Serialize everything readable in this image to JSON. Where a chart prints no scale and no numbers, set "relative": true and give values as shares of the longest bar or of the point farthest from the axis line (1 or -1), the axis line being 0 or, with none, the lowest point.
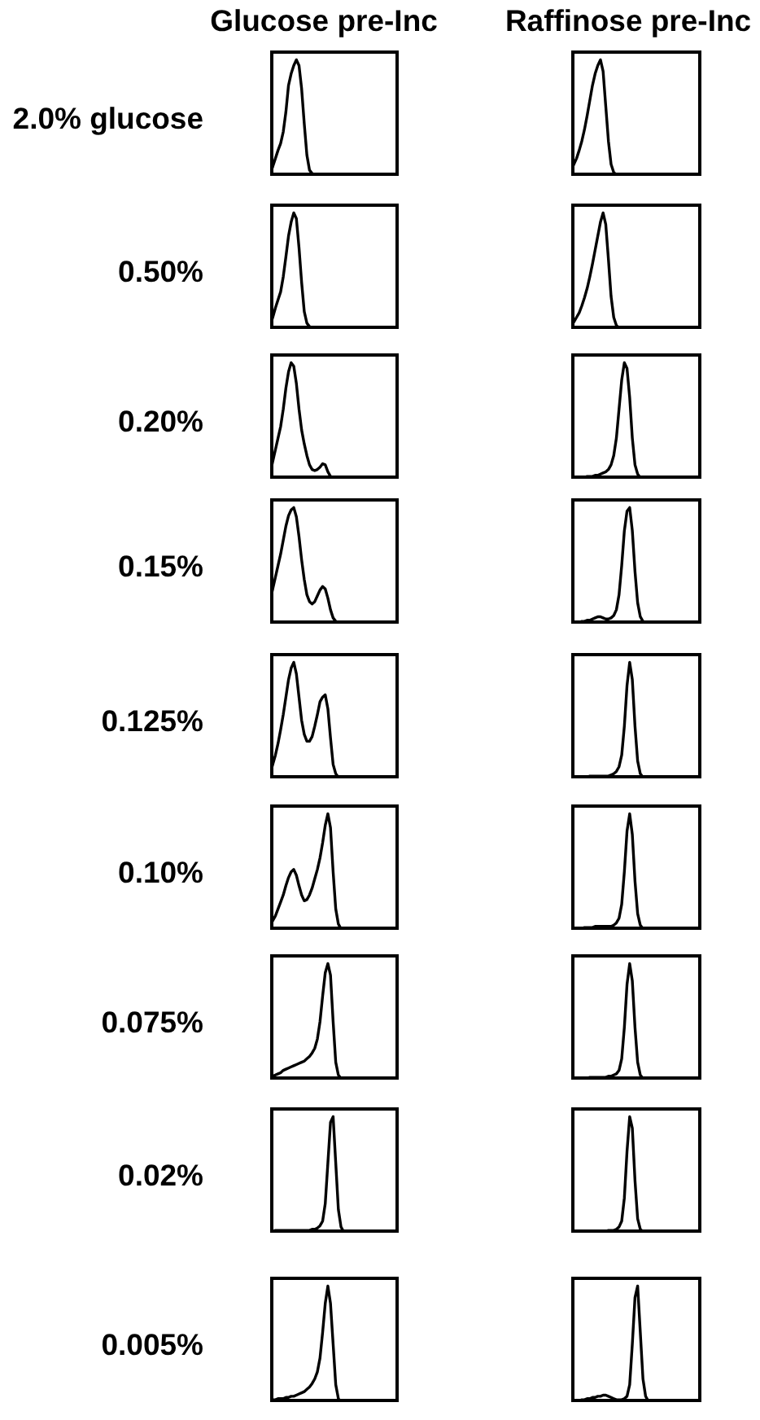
{
  "chart_data": [
    {
      "type": "line",
      "title": "Glucose pre-Inc",
      "ylabel": "2.0% glucose",
      "relative": true,
      "color": "#000000",
      "categories": [
        null,
        null,
        null,
        null,
        null,
        null,
        null,
        null,
        null,
        null,
        null,
        null,
        null,
        null,
        null,
        null,
        null,
        null,
        null,
        null,
        null,
        null,
        null,
        null,
        null,
        null,
        null,
        null,
        null,
        null,
        null,
        null,
        null,
        null,
        null,
        null,
        null,
        null,
        null,
        null,
        null,
        null,
        null,
        null,
        null,
        null,
        null,
        null,
        null,
        null
      ],
      "values": [
        0.02,
        0.08,
        0.15,
        0.22,
        0.28,
        0.38,
        0.55,
        0.78,
        0.88,
        0.95,
        1,
        0.95,
        0.75,
        0.45,
        0.18,
        0.05,
        0.02,
        0.01,
        0.01,
        0.01,
        0,
        0,
        0,
        0,
        0,
        0,
        0,
        0,
        0,
        0,
        0,
        0,
        0,
        0,
        0,
        0,
        0,
        0,
        0,
        0,
        0,
        0,
        0,
        0,
        0,
        0,
        0,
        0,
        0,
        0
      ]
    },
    {
      "type": "line",
      "title": "Raffinose pre-Inc",
      "relative": true,
      "color": "#000000",
      "categories": [
        null,
        null,
        null,
        null,
        null,
        null,
        null,
        null,
        null,
        null,
        null,
        null,
        null,
        null,
        null,
        null,
        null,
        null,
        null,
        null,
        null,
        null,
        null,
        null,
        null,
        null,
        null,
        null,
        null,
        null,
        null,
        null,
        null,
        null,
        null,
        null,
        null,
        null,
        null,
        null,
        null,
        null,
        null,
        null,
        null,
        null,
        null,
        null,
        null,
        null
      ],
      "values": [
        0.05,
        0.1,
        0.15,
        0.22,
        0.3,
        0.4,
        0.52,
        0.65,
        0.78,
        0.88,
        0.95,
        1,
        0.9,
        0.6,
        0.3,
        0.1,
        0.03,
        0.01,
        0.01,
        0,
        0,
        0,
        0,
        0,
        0,
        0,
        0,
        0,
        0,
        0,
        0,
        0,
        0,
        0,
        0,
        0,
        0,
        0,
        0,
        0,
        0,
        0,
        0,
        0,
        0,
        0,
        0,
        0,
        0,
        0
      ]
    },
    {
      "type": "line",
      "ylabel": "0.50%",
      "relative": true,
      "color": "#000000",
      "categories": [
        null,
        null,
        null,
        null,
        null,
        null,
        null,
        null,
        null,
        null,
        null,
        null,
        null,
        null,
        null,
        null,
        null,
        null,
        null,
        null,
        null,
        null,
        null,
        null,
        null,
        null,
        null,
        null,
        null,
        null,
        null,
        null,
        null,
        null,
        null,
        null,
        null,
        null,
        null,
        null,
        null,
        null,
        null,
        null,
        null,
        null,
        null,
        null,
        null,
        null
      ],
      "values": [
        0.03,
        0.1,
        0.18,
        0.25,
        0.32,
        0.45,
        0.62,
        0.8,
        0.92,
        1,
        0.95,
        0.7,
        0.4,
        0.15,
        0.05,
        0.02,
        0.01,
        0.01,
        0,
        0,
        0,
        0,
        0,
        0,
        0,
        0,
        0,
        0,
        0,
        0,
        0,
        0,
        0,
        0,
        0,
        0,
        0,
        0,
        0,
        0,
        0,
        0,
        0,
        0,
        0,
        0,
        0,
        0,
        0,
        0
      ]
    },
    {
      "type": "line",
      "relative": true,
      "color": "#000000",
      "categories": [
        null,
        null,
        null,
        null,
        null,
        null,
        null,
        null,
        null,
        null,
        null,
        null,
        null,
        null,
        null,
        null,
        null,
        null,
        null,
        null,
        null,
        null,
        null,
        null,
        null,
        null,
        null,
        null,
        null,
        null,
        null,
        null,
        null,
        null,
        null,
        null,
        null,
        null,
        null,
        null,
        null,
        null,
        null,
        null,
        null,
        null,
        null,
        null,
        null,
        null
      ],
      "values": [
        0.03,
        0.06,
        0.1,
        0.14,
        0.2,
        0.27,
        0.35,
        0.45,
        0.56,
        0.68,
        0.8,
        0.92,
        1,
        0.9,
        0.6,
        0.28,
        0.1,
        0.03,
        0.01,
        0.01,
        0,
        0,
        0,
        0,
        0,
        0,
        0,
        0,
        0,
        0,
        0,
        0,
        0,
        0,
        0,
        0,
        0,
        0,
        0,
        0,
        0,
        0,
        0,
        0,
        0,
        0,
        0,
        0,
        0,
        0
      ]
    },
    {
      "type": "line",
      "ylabel": "0.20%",
      "relative": true,
      "color": "#000000",
      "categories": [
        null,
        null,
        null,
        null,
        null,
        null,
        null,
        null,
        null,
        null,
        null,
        null,
        null,
        null,
        null,
        null,
        null,
        null,
        null,
        null,
        null,
        null,
        null,
        null,
        null,
        null,
        null,
        null,
        null,
        null,
        null,
        null,
        null,
        null,
        null,
        null,
        null,
        null,
        null,
        null,
        null,
        null,
        null,
        null,
        null,
        null,
        null,
        null,
        null,
        null
      ],
      "values": [
        0.05,
        0.15,
        0.25,
        0.35,
        0.45,
        0.6,
        0.78,
        0.92,
        1,
        0.97,
        0.82,
        0.6,
        0.42,
        0.3,
        0.2,
        0.12,
        0.08,
        0.07,
        0.08,
        0.1,
        0.13,
        0.12,
        0.06,
        0.02,
        0.01,
        0,
        0,
        0,
        0,
        0,
        0,
        0,
        0,
        0,
        0,
        0,
        0,
        0,
        0,
        0,
        0,
        0,
        0,
        0,
        0,
        0,
        0,
        0,
        0,
        0
      ]
    },
    {
      "type": "line",
      "relative": true,
      "color": "#000000",
      "categories": [
        null,
        null,
        null,
        null,
        null,
        null,
        null,
        null,
        null,
        null,
        null,
        null,
        null,
        null,
        null,
        null,
        null,
        null,
        null,
        null,
        null,
        null,
        null,
        null,
        null,
        null,
        null,
        null,
        null,
        null,
        null,
        null,
        null,
        null,
        null,
        null,
        null,
        null,
        null,
        null,
        null,
        null,
        null,
        null,
        null,
        null,
        null,
        null,
        null,
        null
      ],
      "values": [
        0,
        0,
        0,
        0.01,
        0.01,
        0.01,
        0.02,
        0.02,
        0.02,
        0.03,
        0.03,
        0.04,
        0.05,
        0.06,
        0.08,
        0.12,
        0.2,
        0.35,
        0.6,
        0.85,
        1,
        0.95,
        0.7,
        0.35,
        0.12,
        0.04,
        0.01,
        0,
        0,
        0,
        0,
        0,
        0,
        0,
        0,
        0,
        0,
        0,
        0,
        0,
        0,
        0,
        0,
        0,
        0,
        0,
        0,
        0,
        0,
        0
      ]
    },
    {
      "type": "line",
      "ylabel": "0.15%",
      "relative": true,
      "color": "#000000",
      "categories": [
        null,
        null,
        null,
        null,
        null,
        null,
        null,
        null,
        null,
        null,
        null,
        null,
        null,
        null,
        null,
        null,
        null,
        null,
        null,
        null,
        null,
        null,
        null,
        null,
        null,
        null,
        null,
        null,
        null,
        null,
        null,
        null,
        null,
        null,
        null,
        null,
        null,
        null,
        null,
        null,
        null,
        null,
        null,
        null,
        null,
        null,
        null,
        null,
        null,
        null
      ],
      "values": [
        0.21,
        0.3,
        0.4,
        0.5,
        0.6,
        0.72,
        0.84,
        0.93,
        0.98,
        1,
        0.92,
        0.75,
        0.55,
        0.38,
        0.25,
        0.19,
        0.17,
        0.19,
        0.24,
        0.29,
        0.32,
        0.3,
        0.22,
        0.12,
        0.05,
        0.02,
        0.01,
        0,
        0,
        0,
        0,
        0,
        0,
        0,
        0,
        0,
        0,
        0,
        0,
        0,
        0,
        0,
        0,
        0,
        0,
        0,
        0,
        0,
        0,
        0
      ]
    },
    {
      "type": "line",
      "relative": true,
      "color": "#000000",
      "categories": [
        null,
        null,
        null,
        null,
        null,
        null,
        null,
        null,
        null,
        null,
        null,
        null,
        null,
        null,
        null,
        null,
        null,
        null,
        null,
        null,
        null,
        null,
        null,
        null,
        null,
        null,
        null,
        null,
        null,
        null,
        null,
        null,
        null,
        null,
        null,
        null,
        null,
        null,
        null,
        null,
        null,
        null,
        null,
        null,
        null,
        null,
        null,
        null,
        null,
        null
      ],
      "values": [
        0,
        0.01,
        0.01,
        0.01,
        0.02,
        0.02,
        0.03,
        0.03,
        0.04,
        0.05,
        0.06,
        0.06,
        0.05,
        0.04,
        0.04,
        0.05,
        0.07,
        0.12,
        0.25,
        0.5,
        0.8,
        0.97,
        1,
        0.8,
        0.45,
        0.18,
        0.06,
        0.02,
        0.01,
        0,
        0,
        0,
        0,
        0,
        0,
        0,
        0,
        0,
        0,
        0,
        0,
        0,
        0,
        0,
        0,
        0,
        0,
        0,
        0,
        0
      ]
    },
    {
      "type": "line",
      "ylabel": "0.125%",
      "relative": true,
      "color": "#000000",
      "categories": [
        null,
        null,
        null,
        null,
        null,
        null,
        null,
        null,
        null,
        null,
        null,
        null,
        null,
        null,
        null,
        null,
        null,
        null,
        null,
        null,
        null,
        null,
        null,
        null,
        null,
        null,
        null,
        null,
        null,
        null,
        null,
        null,
        null,
        null,
        null,
        null,
        null,
        null,
        null,
        null,
        null,
        null,
        null,
        null,
        null,
        null,
        null,
        null,
        null,
        null
      ],
      "values": [
        0.05,
        0.12,
        0.2,
        0.3,
        0.42,
        0.55,
        0.7,
        0.85,
        0.95,
        1,
        0.9,
        0.7,
        0.5,
        0.38,
        0.32,
        0.32,
        0.36,
        0.45,
        0.55,
        0.66,
        0.7,
        0.72,
        0.6,
        0.35,
        0.12,
        0.04,
        0.01,
        0,
        0,
        0,
        0,
        0,
        0,
        0,
        0,
        0,
        0,
        0,
        0,
        0,
        0,
        0,
        0,
        0,
        0,
        0,
        0,
        0,
        0,
        0
      ]
    },
    {
      "type": "line",
      "relative": true,
      "color": "#000000",
      "categories": [
        null,
        null,
        null,
        null,
        null,
        null,
        null,
        null,
        null,
        null,
        null,
        null,
        null,
        null,
        null,
        null,
        null,
        null,
        null,
        null,
        null,
        null,
        null,
        null,
        null,
        null,
        null,
        null,
        null,
        null,
        null,
        null,
        null,
        null,
        null,
        null,
        null,
        null,
        null,
        null,
        null,
        null,
        null,
        null,
        null,
        null,
        null,
        null,
        null,
        null
      ],
      "values": [
        0,
        0,
        0,
        0.01,
        0.01,
        0.01,
        0.01,
        0.02,
        0.02,
        0.02,
        0.02,
        0.02,
        0.02,
        0.02,
        0.02,
        0.03,
        0.04,
        0.06,
        0.1,
        0.2,
        0.45,
        0.8,
        1,
        0.85,
        0.45,
        0.15,
        0.04,
        0.01,
        0,
        0,
        0,
        0,
        0,
        0,
        0,
        0,
        0,
        0,
        0,
        0,
        0,
        0,
        0,
        0,
        0,
        0,
        0,
        0,
        0,
        0
      ]
    },
    {
      "type": "line",
      "ylabel": "0.10%",
      "relative": true,
      "color": "#000000",
      "categories": [
        null,
        null,
        null,
        null,
        null,
        null,
        null,
        null,
        null,
        null,
        null,
        null,
        null,
        null,
        null,
        null,
        null,
        null,
        null,
        null,
        null,
        null,
        null,
        null,
        null,
        null,
        null,
        null,
        null,
        null,
        null,
        null,
        null,
        null,
        null,
        null,
        null,
        null,
        null,
        null,
        null,
        null,
        null,
        null,
        null,
        null,
        null,
        null,
        null,
        null
      ],
      "values": [
        0.04,
        0.08,
        0.12,
        0.18,
        0.24,
        0.3,
        0.38,
        0.45,
        0.5,
        0.52,
        0.47,
        0.38,
        0.3,
        0.25,
        0.26,
        0.3,
        0.36,
        0.44,
        0.52,
        0.62,
        0.75,
        0.9,
        1,
        0.88,
        0.5,
        0.18,
        0.05,
        0.01,
        0,
        0,
        0,
        0,
        0,
        0,
        0,
        0,
        0,
        0,
        0,
        0,
        0,
        0,
        0,
        0,
        0,
        0,
        0,
        0,
        0,
        0
      ]
    },
    {
      "type": "line",
      "relative": true,
      "color": "#000000",
      "categories": [
        null,
        null,
        null,
        null,
        null,
        null,
        null,
        null,
        null,
        null,
        null,
        null,
        null,
        null,
        null,
        null,
        null,
        null,
        null,
        null,
        null,
        null,
        null,
        null,
        null,
        null,
        null,
        null,
        null,
        null,
        null,
        null,
        null,
        null,
        null,
        null,
        null,
        null,
        null,
        null,
        null,
        null,
        null,
        null,
        null,
        null,
        null,
        null,
        null,
        null
      ],
      "values": [
        0,
        0,
        0.01,
        0.01,
        0.01,
        0.02,
        0.02,
        0.02,
        0.02,
        0.03,
        0.03,
        0.03,
        0.03,
        0.03,
        0.03,
        0.03,
        0.04,
        0.06,
        0.1,
        0.22,
        0.5,
        0.85,
        1,
        0.82,
        0.42,
        0.14,
        0.04,
        0.01,
        0,
        0,
        0,
        0,
        0,
        0,
        0,
        0,
        0,
        0,
        0,
        0,
        0,
        0,
        0,
        0,
        0,
        0,
        0,
        0,
        0,
        0
      ]
    },
    {
      "type": "line",
      "ylabel": "0.075%",
      "relative": true,
      "color": "#000000",
      "categories": [
        null,
        null,
        null,
        null,
        null,
        null,
        null,
        null,
        null,
        null,
        null,
        null,
        null,
        null,
        null,
        null,
        null,
        null,
        null,
        null,
        null,
        null,
        null,
        null,
        null,
        null,
        null,
        null,
        null,
        null,
        null,
        null,
        null,
        null,
        null,
        null,
        null,
        null,
        null,
        null,
        null,
        null,
        null,
        null,
        null,
        null,
        null,
        null,
        null,
        null
      ],
      "values": [
        0.02,
        0.03,
        0.04,
        0.05,
        0.06,
        0.08,
        0.09,
        0.1,
        0.11,
        0.12,
        0.13,
        0.14,
        0.15,
        0.16,
        0.18,
        0.2,
        0.23,
        0.27,
        0.35,
        0.5,
        0.72,
        0.92,
        1,
        0.9,
        0.5,
        0.15,
        0.04,
        0.01,
        0,
        0,
        0,
        0,
        0,
        0,
        0,
        0,
        0,
        0,
        0,
        0,
        0,
        0,
        0,
        0,
        0,
        0,
        0,
        0,
        0,
        0
      ]
    },
    {
      "type": "line",
      "relative": true,
      "color": "#000000",
      "categories": [
        null,
        null,
        null,
        null,
        null,
        null,
        null,
        null,
        null,
        null,
        null,
        null,
        null,
        null,
        null,
        null,
        null,
        null,
        null,
        null,
        null,
        null,
        null,
        null,
        null,
        null,
        null,
        null,
        null,
        null,
        null,
        null,
        null,
        null,
        null,
        null,
        null,
        null,
        null,
        null,
        null,
        null,
        null,
        null,
        null,
        null,
        null,
        null,
        null,
        null
      ],
      "values": [
        0,
        0,
        0,
        0.01,
        0.01,
        0.01,
        0.01,
        0.02,
        0.02,
        0.02,
        0.02,
        0.02,
        0.02,
        0.02,
        0.03,
        0.03,
        0.04,
        0.05,
        0.08,
        0.18,
        0.45,
        0.82,
        1,
        0.85,
        0.45,
        0.15,
        0.04,
        0.01,
        0,
        0,
        0,
        0,
        0,
        0,
        0,
        0,
        0,
        0,
        0,
        0,
        0,
        0,
        0,
        0,
        0,
        0,
        0,
        0,
        0,
        0
      ]
    },
    {
      "type": "line",
      "ylabel": "0.02%",
      "relative": true,
      "color": "#000000",
      "categories": [
        null,
        null,
        null,
        null,
        null,
        null,
        null,
        null,
        null,
        null,
        null,
        null,
        null,
        null,
        null,
        null,
        null,
        null,
        null,
        null,
        null,
        null,
        null,
        null,
        null,
        null,
        null,
        null,
        null,
        null,
        null,
        null,
        null,
        null,
        null,
        null,
        null,
        null,
        null,
        null,
        null,
        null,
        null,
        null,
        null,
        null,
        null,
        null,
        null,
        null
      ],
      "values": [
        0.01,
        0.01,
        0.02,
        0.02,
        0.02,
        0.02,
        0.02,
        0.02,
        0.02,
        0.02,
        0.02,
        0.02,
        0.02,
        0.02,
        0.02,
        0.02,
        0.03,
        0.03,
        0.04,
        0.06,
        0.1,
        0.25,
        0.6,
        0.95,
        1,
        0.6,
        0.2,
        0.05,
        0.01,
        0,
        0,
        0,
        0,
        0,
        0,
        0,
        0,
        0,
        0,
        0,
        0,
        0,
        0,
        0,
        0,
        0,
        0,
        0,
        0,
        0
      ]
    },
    {
      "type": "line",
      "relative": true,
      "color": "#000000",
      "categories": [
        null,
        null,
        null,
        null,
        null,
        null,
        null,
        null,
        null,
        null,
        null,
        null,
        null,
        null,
        null,
        null,
        null,
        null,
        null,
        null,
        null,
        null,
        null,
        null,
        null,
        null,
        null,
        null,
        null,
        null,
        null,
        null,
        null,
        null,
        null,
        null,
        null,
        null,
        null,
        null,
        null,
        null,
        null,
        null,
        null,
        null,
        null,
        null,
        null,
        null
      ],
      "values": [
        0,
        0,
        0,
        0.01,
        0.01,
        0.01,
        0.01,
        0.01,
        0.01,
        0.01,
        0.01,
        0.01,
        0.01,
        0.01,
        0.02,
        0.02,
        0.02,
        0.03,
        0.05,
        0.1,
        0.3,
        0.7,
        1,
        0.9,
        0.45,
        0.12,
        0.03,
        0.01,
        0,
        0,
        0,
        0,
        0,
        0,
        0,
        0,
        0,
        0,
        0,
        0,
        0,
        0,
        0,
        0,
        0,
        0,
        0,
        0,
        0,
        0
      ]
    },
    {
      "type": "line",
      "ylabel": "0.005%",
      "relative": true,
      "color": "#000000",
      "categories": [
        null,
        null,
        null,
        null,
        null,
        null,
        null,
        null,
        null,
        null,
        null,
        null,
        null,
        null,
        null,
        null,
        null,
        null,
        null,
        null,
        null,
        null,
        null,
        null,
        null,
        null,
        null,
        null,
        null,
        null,
        null,
        null,
        null,
        null,
        null,
        null,
        null,
        null,
        null,
        null,
        null,
        null,
        null,
        null,
        null,
        null,
        null,
        null,
        null,
        null
      ],
      "values": [
        0.01,
        0.02,
        0.02,
        0.03,
        0.03,
        0.03,
        0.04,
        0.04,
        0.05,
        0.05,
        0.06,
        0.07,
        0.08,
        0.09,
        0.11,
        0.13,
        0.16,
        0.2,
        0.26,
        0.38,
        0.6,
        0.85,
        1,
        0.85,
        0.5,
        0.15,
        0.03,
        0,
        0,
        0,
        0,
        0,
        0,
        0,
        0,
        0,
        0,
        0,
        0,
        0,
        0,
        0,
        0,
        0,
        0,
        0,
        0,
        0,
        0,
        0
      ]
    },
    {
      "type": "line",
      "relative": true,
      "color": "#000000",
      "categories": [
        null,
        null,
        null,
        null,
        null,
        null,
        null,
        null,
        null,
        null,
        null,
        null,
        null,
        null,
        null,
        null,
        null,
        null,
        null,
        null,
        null,
        null,
        null,
        null,
        null,
        null,
        null,
        null,
        null,
        null,
        null,
        null,
        null,
        null,
        null,
        null,
        null,
        null,
        null,
        null,
        null,
        null,
        null,
        null,
        null,
        null,
        null,
        null,
        null,
        null
      ],
      "values": [
        0,
        0.01,
        0.01,
        0.01,
        0.02,
        0.02,
        0.03,
        0.03,
        0.04,
        0.04,
        0.05,
        0.05,
        0.06,
        0.06,
        0.05,
        0.04,
        0.03,
        0.02,
        0.02,
        0.02,
        0.03,
        0.05,
        0.15,
        0.5,
        0.9,
        1,
        0.6,
        0.2,
        0.05,
        0.01,
        0,
        0,
        0,
        0,
        0,
        0,
        0,
        0,
        0,
        0,
        0,
        0,
        0,
        0,
        0,
        0,
        0,
        0,
        0,
        0
      ]
    }
  ]
}
